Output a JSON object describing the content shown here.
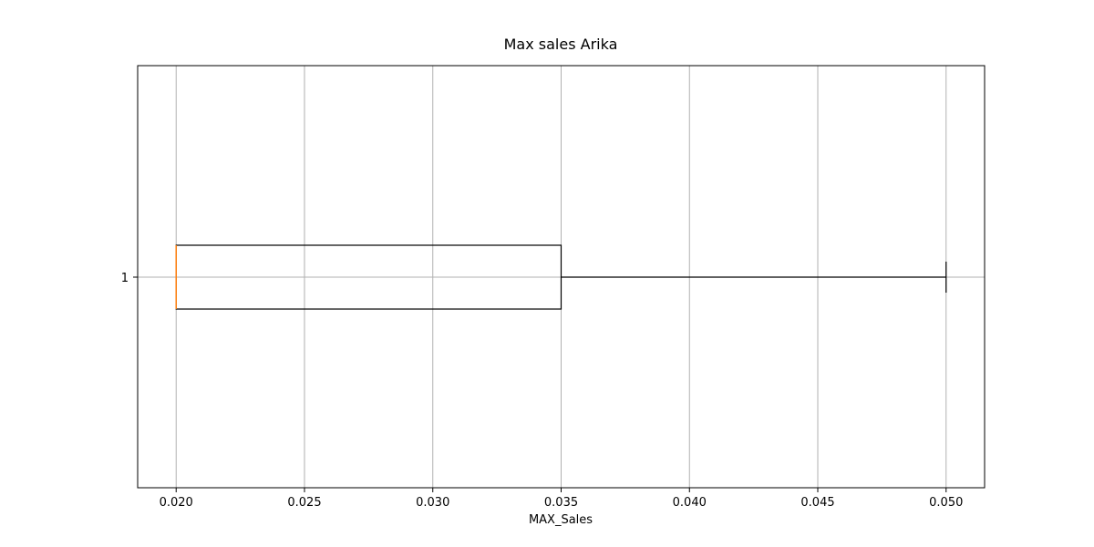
{
  "chart_data": {
    "type": "boxplot",
    "orientation": "horizontal",
    "title": "Max sales Arika",
    "xlabel": "MAX_Sales",
    "ylabel": "",
    "xlim": [
      0.0185,
      0.0515
    ],
    "xticks": [
      "0.020",
      "0.025",
      "0.030",
      "0.035",
      "0.040",
      "0.045",
      "0.050"
    ],
    "yticks": [
      "1"
    ],
    "grid": true,
    "series": [
      {
        "category": "1",
        "whisker_low": 0.02,
        "q1": 0.02,
        "median": 0.02,
        "q3": 0.035,
        "whisker_high": 0.05
      }
    ],
    "colors": {
      "box": "#000000",
      "median": "#ff7f0e",
      "grid": "#b0b0b0"
    }
  }
}
